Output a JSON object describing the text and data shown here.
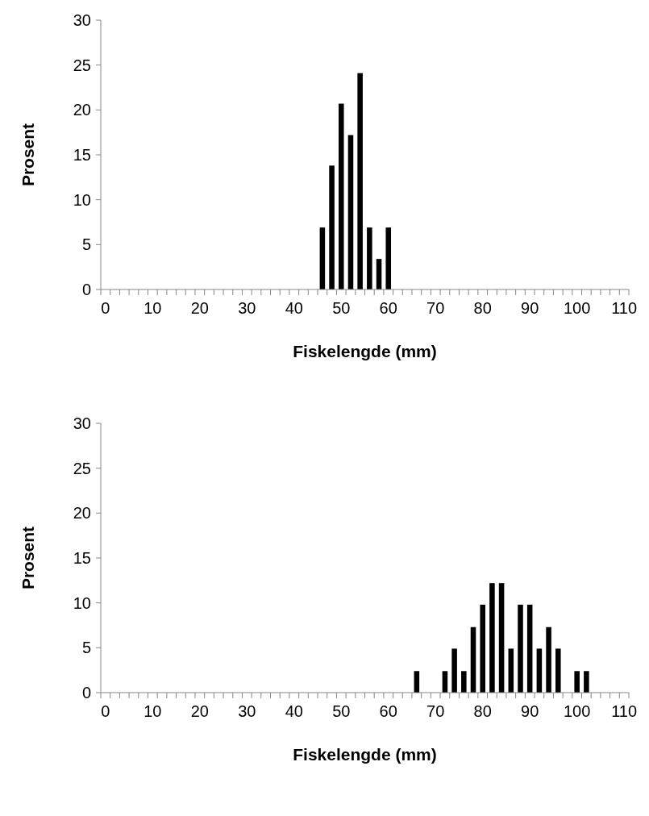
{
  "chart_data": [
    {
      "type": "bar",
      "xlabel": "Fiskelengde (mm)",
      "ylabel": "Prosent",
      "color": "#000000",
      "ylim": [
        0,
        30
      ],
      "yticks": [
        0,
        5,
        10,
        15,
        20,
        25,
        30
      ],
      "categories": [
        "0",
        null,
        null,
        null,
        null,
        "10",
        null,
        null,
        null,
        null,
        "20",
        null,
        null,
        null,
        null,
        "30",
        null,
        null,
        null,
        null,
        "40",
        null,
        null,
        null,
        null,
        "50",
        null,
        null,
        null,
        null,
        "60",
        null,
        null,
        null,
        null,
        "70",
        null,
        null,
        null,
        null,
        "80",
        null,
        null,
        null,
        null,
        "90",
        null,
        null,
        null,
        null,
        "100",
        null,
        null,
        null,
        null,
        "110"
      ],
      "values": [
        null,
        null,
        null,
        null,
        null,
        null,
        null,
        null,
        null,
        null,
        null,
        null,
        null,
        null,
        null,
        null,
        null,
        null,
        null,
        null,
        null,
        null,
        null,
        6.9,
        13.8,
        20.7,
        17.2,
        24.1,
        6.9,
        3.4,
        6.9,
        null,
        null,
        null,
        null,
        null,
        null,
        null,
        null,
        null,
        null,
        null,
        null,
        null,
        null,
        null,
        null,
        null,
        null,
        null,
        null,
        null,
        null,
        null,
        null,
        null
      ]
    },
    {
      "type": "bar",
      "xlabel": "Fiskelengde (mm)",
      "ylabel": "Prosent",
      "color": "#000000",
      "ylim": [
        0,
        30
      ],
      "yticks": [
        0,
        5,
        10,
        15,
        20,
        25,
        30
      ],
      "categories": [
        "0",
        null,
        null,
        null,
        null,
        "10",
        null,
        null,
        null,
        null,
        "20",
        null,
        null,
        null,
        null,
        "30",
        null,
        null,
        null,
        null,
        "40",
        null,
        null,
        null,
        null,
        "50",
        null,
        null,
        null,
        null,
        "60",
        null,
        null,
        null,
        null,
        "70",
        null,
        null,
        null,
        null,
        "80",
        null,
        null,
        null,
        null,
        "90",
        null,
        null,
        null,
        null,
        "100",
        null,
        null,
        null,
        null,
        "110"
      ],
      "values": [
        null,
        null,
        null,
        null,
        null,
        null,
        null,
        null,
        null,
        null,
        null,
        null,
        null,
        null,
        null,
        null,
        null,
        null,
        null,
        null,
        null,
        null,
        null,
        null,
        null,
        null,
        null,
        null,
        null,
        null,
        null,
        null,
        null,
        2.4,
        null,
        null,
        2.4,
        4.9,
        2.4,
        7.3,
        9.8,
        12.2,
        12.2,
        4.9,
        9.8,
        9.8,
        4.9,
        7.3,
        4.9,
        null,
        2.4,
        2.4,
        null,
        null,
        null,
        null
      ]
    }
  ]
}
